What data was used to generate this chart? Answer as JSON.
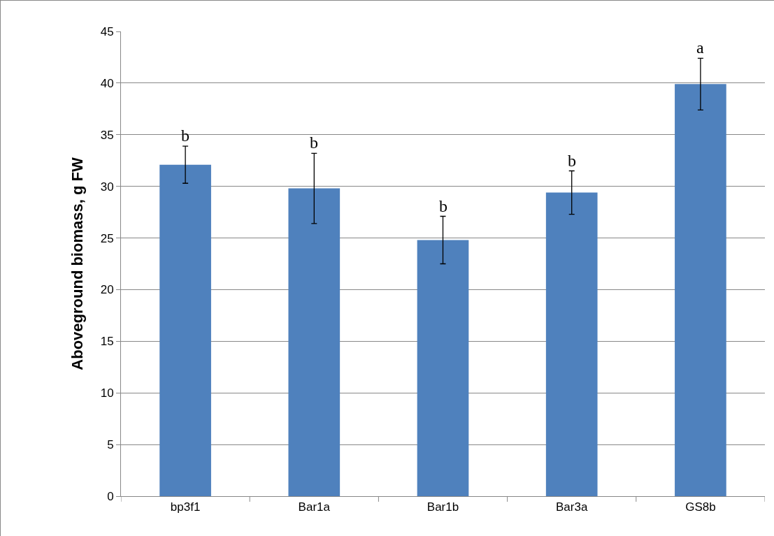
{
  "chart_data": {
    "type": "bar",
    "ylabel": "Aboveground biomass, g FW",
    "categories": [
      "bp3f1",
      "Bar1a",
      "Bar1b",
      "Bar3a",
      "GS8b"
    ],
    "values": [
      32.1,
      29.8,
      24.8,
      29.4,
      39.9
    ],
    "errors": [
      1.8,
      3.4,
      2.3,
      2.1,
      2.5
    ],
    "color": "#4f81bd",
    "ylim": [
      0,
      45
    ],
    "yticks": [
      0,
      5,
      10,
      15,
      20,
      25,
      30,
      35,
      40,
      45
    ],
    "grid": "y",
    "annotations": [
      {
        "text": "b",
        "x": "bp3f1",
        "y": 33.9
      },
      {
        "text": "b",
        "x": "Bar1a",
        "y": 33.2
      },
      {
        "text": "b",
        "x": "Bar1b",
        "y": 27.1
      },
      {
        "text": "b",
        "x": "Bar3a",
        "y": 31.5
      },
      {
        "text": "a",
        "x": "GS8b",
        "y": 42.4
      }
    ]
  }
}
